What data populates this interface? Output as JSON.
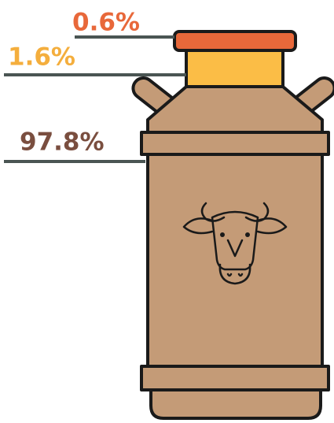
{
  "chart_data": {
    "type": "pictorial",
    "values": [
      0.6,
      1.6,
      97.8
    ],
    "value_labels": [
      "0.6%",
      "1.6%",
      "97.8%"
    ],
    "colors": [
      "#e8683a",
      "#fbbd46",
      "#c49b77"
    ],
    "label_colors": [
      "#e8683a",
      "#f4ae3d",
      "#7a4e3f"
    ]
  }
}
